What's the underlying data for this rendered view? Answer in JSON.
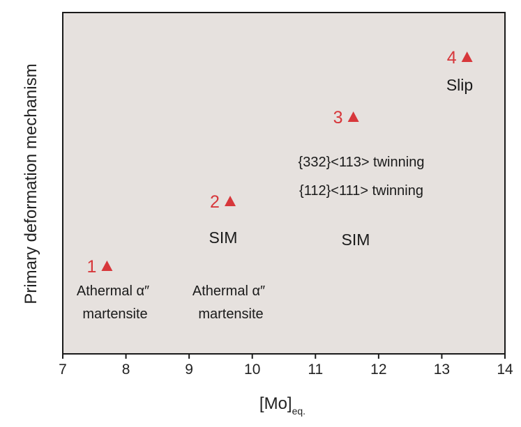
{
  "chart_data": {
    "type": "scatter",
    "title": "",
    "xlabel": "[Mo]",
    "xlabel_sub": "eq.",
    "ylabel": "Primary deformation mechanism",
    "xlim": [
      7,
      14
    ],
    "xticks": [
      "7",
      "8",
      "9",
      "10",
      "11",
      "12",
      "13",
      "14"
    ],
    "grid": false,
    "colors": {
      "plot_bg": "#e6e1de",
      "marker": "#d7373b",
      "text": "#1a1a1a"
    },
    "points": [
      {
        "label": "1",
        "x": 7.7,
        "level": 1
      },
      {
        "label": "2",
        "x": 9.65,
        "level": 2
      },
      {
        "label": "3",
        "x": 11.6,
        "level": 3
      },
      {
        "label": "4",
        "x": 13.4,
        "level": 4
      }
    ],
    "annotations": [
      {
        "lines": [
          "Athermal α″",
          "martensite"
        ]
      },
      {
        "lines": [
          "Athermal α″",
          "martensite"
        ]
      },
      {
        "lines": [
          "SIM"
        ]
      },
      {
        "lines": [
          "SIM"
        ]
      },
      {
        "lines": [
          "{112}<111> twinning"
        ]
      },
      {
        "lines": [
          "{332}<113> twinning"
        ]
      },
      {
        "lines": [
          "Slip"
        ]
      }
    ]
  }
}
